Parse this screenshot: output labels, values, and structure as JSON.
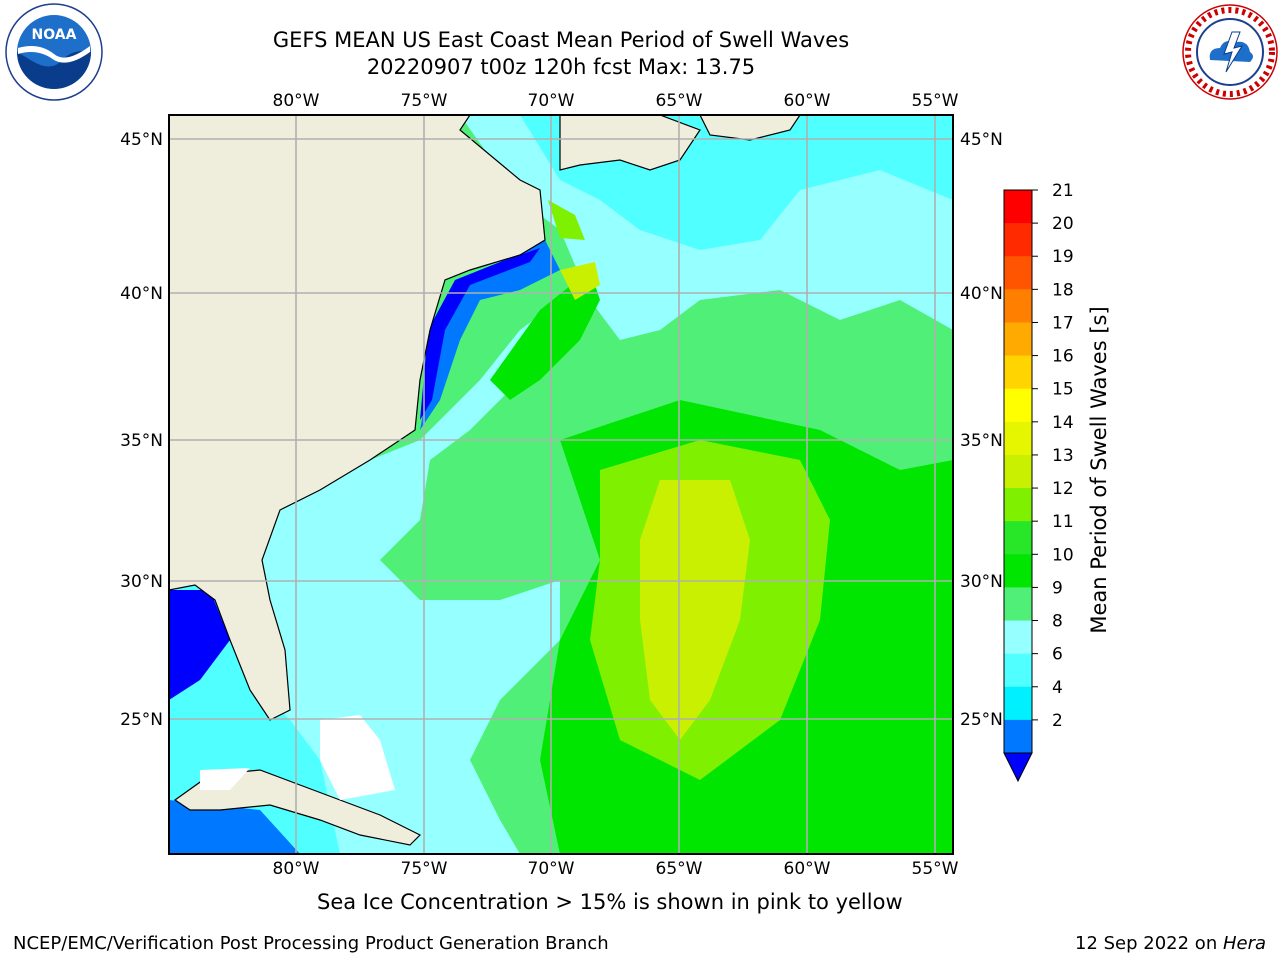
{
  "header": {
    "title_line1": "GEFS MEAN US East Coast Mean Period of Swell Waves",
    "title_line2": "20220907 t00z 120h fcst   Max: 13.75"
  },
  "logos": {
    "left": "noaa-logo",
    "left_text": "NOAA",
    "right": "national-weather-service-logo",
    "right_text": "NATIONAL WEATHER SERVICE"
  },
  "map": {
    "lon_ticks": [
      "80°W",
      "75°W",
      "70°W",
      "65°W",
      "60°W",
      "55°W"
    ],
    "lat_ticks": [
      "45°N",
      "40°N",
      "35°N",
      "30°N",
      "25°N"
    ],
    "land_color": "#efeddc",
    "grid_color": "#b0b0b0"
  },
  "colorbar": {
    "label": "Mean Period of Swell Waves [s]",
    "ticks": [
      "21",
      "20",
      "19",
      "18",
      "17",
      "16",
      "15",
      "14",
      "13",
      "12",
      "11",
      "10",
      "9",
      "8",
      "6",
      "4",
      "2"
    ],
    "colors": [
      "#ff0000",
      "#ff2a00",
      "#ff5500",
      "#ff8000",
      "#ffaa00",
      "#ffd400",
      "#ffff00",
      "#e6f500",
      "#c8f000",
      "#7ff000",
      "#28e628",
      "#00e600",
      "#50f078",
      "#96ffff",
      "#50ffff",
      "#00f0ff",
      "#0078ff"
    ],
    "extend_color": "#0000ff"
  },
  "footer": {
    "ice_note": "Sea Ice Concentration > 15% is shown in pink to yellow",
    "left": "NCEP/EMC/Verification Post Processing Product Generation Branch",
    "date": "12 Sep 2022 on ",
    "host": "Hera"
  }
}
